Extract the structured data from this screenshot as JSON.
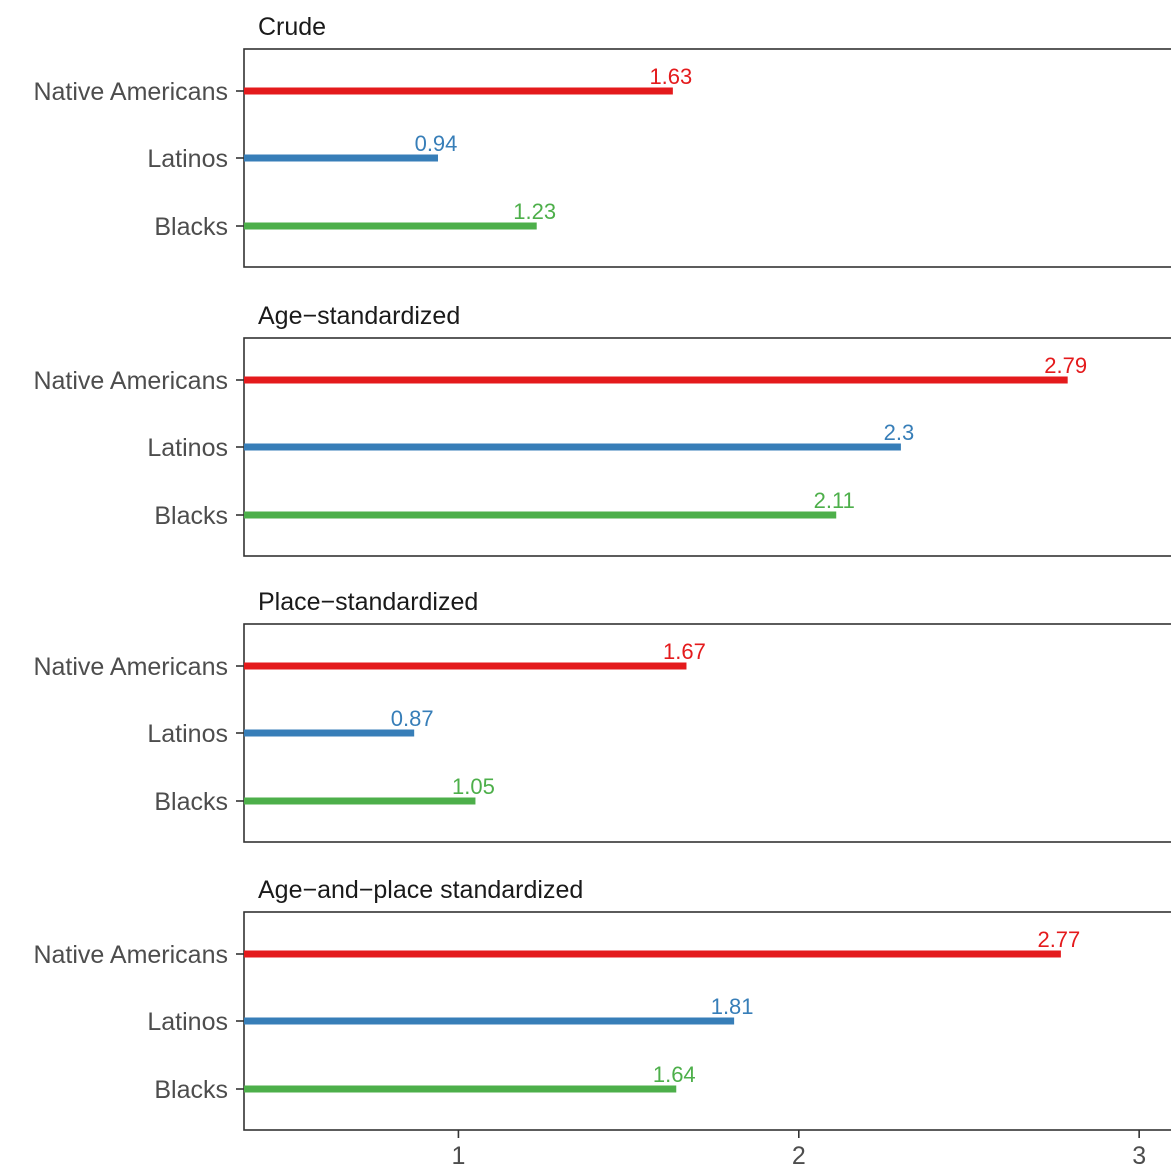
{
  "chart_data": {
    "type": "bar",
    "orientation": "horizontal",
    "categories": [
      "Native Americans",
      "Latinos",
      "Blacks"
    ],
    "colors": {
      "Native Americans": "#e41a1c",
      "Latinos": "#377eb8",
      "Blacks": "#4daf4a"
    },
    "x_ticks": [
      1,
      2,
      3
    ],
    "xlim": [
      0.37,
      3.12
    ],
    "grid": false,
    "legend": "none",
    "panels": [
      {
        "title": "Crude",
        "values": [
          1.63,
          0.94,
          1.23
        ],
        "labels": [
          "1.63",
          "0.94",
          "1.23"
        ]
      },
      {
        "title": "Age−standardized",
        "values": [
          2.79,
          2.3,
          2.11
        ],
        "labels": [
          "2.79",
          "2.3",
          "2.11"
        ]
      },
      {
        "title": "Place−standardized",
        "values": [
          1.67,
          0.87,
          1.05
        ],
        "labels": [
          "1.67",
          "0.87",
          "1.05"
        ]
      },
      {
        "title": "Age−and−place standardized",
        "values": [
          2.77,
          1.81,
          1.64
        ],
        "labels": [
          "2.77",
          "1.81",
          "1.64"
        ]
      }
    ]
  }
}
